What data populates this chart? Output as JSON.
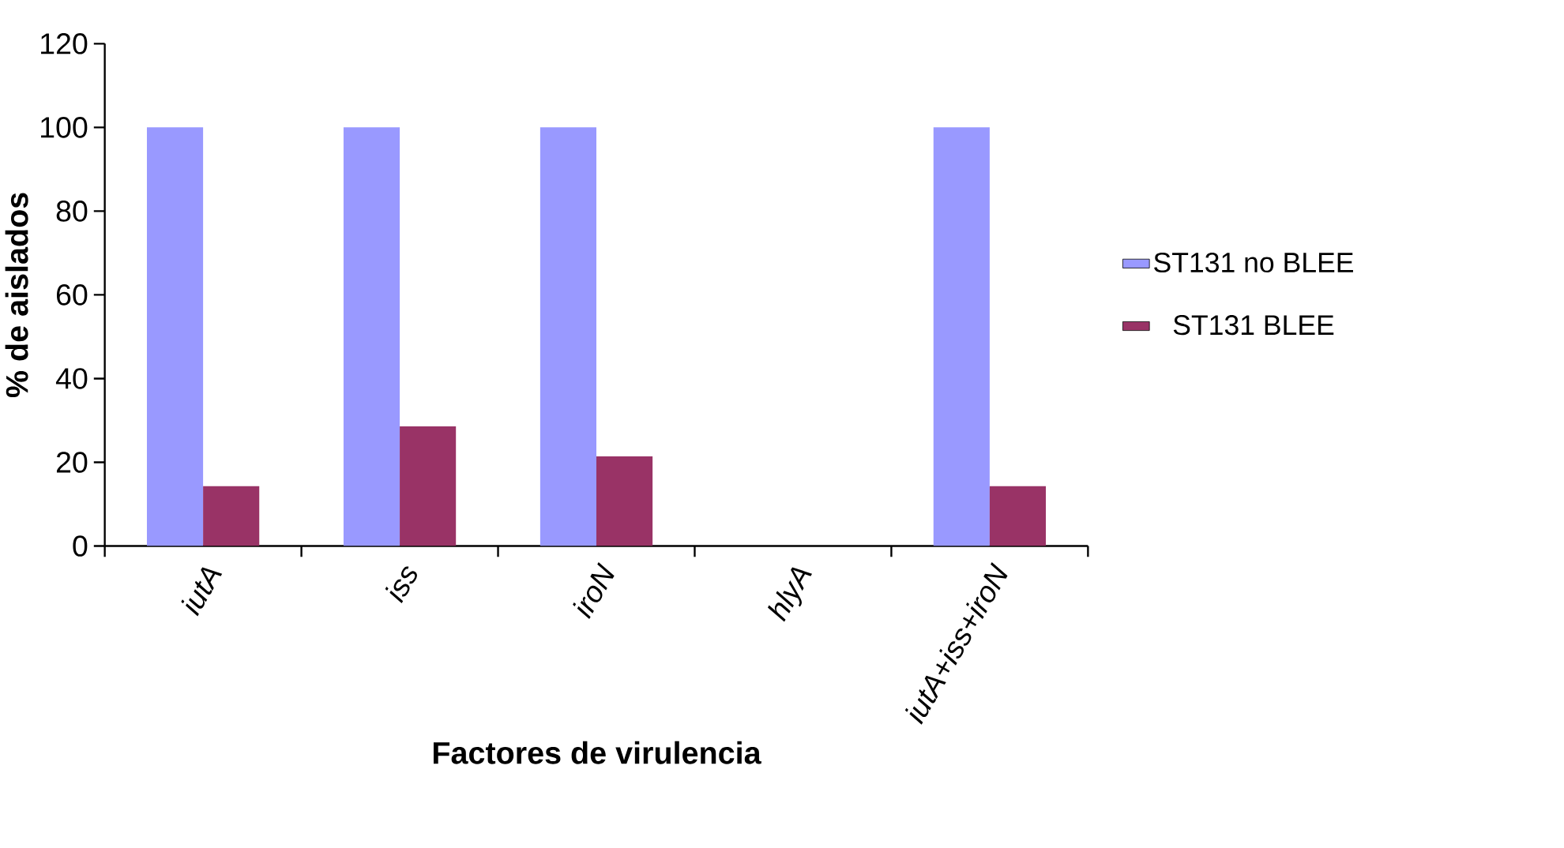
{
  "chart_data": {
    "type": "bar",
    "xlabel": "Factores de virulencia",
    "ylabel": "% de aislados",
    "categories": [
      "iutA",
      "iss",
      "iroN",
      "hlyA",
      "iutA+iss+iroN"
    ],
    "series": [
      {
        "name": "ST131 no BLEE",
        "color": "#9999ff",
        "values": [
          100,
          100,
          100,
          0,
          100
        ]
      },
      {
        "name": "ST131 BLEE",
        "color": "#993366",
        "values": [
          14.3,
          28.6,
          21.4,
          0,
          14.3
        ]
      }
    ],
    "ylim": [
      0,
      120
    ],
    "yticks": [
      0,
      20,
      40,
      60,
      80,
      100,
      120
    ],
    "grid": false,
    "legend": "right"
  }
}
